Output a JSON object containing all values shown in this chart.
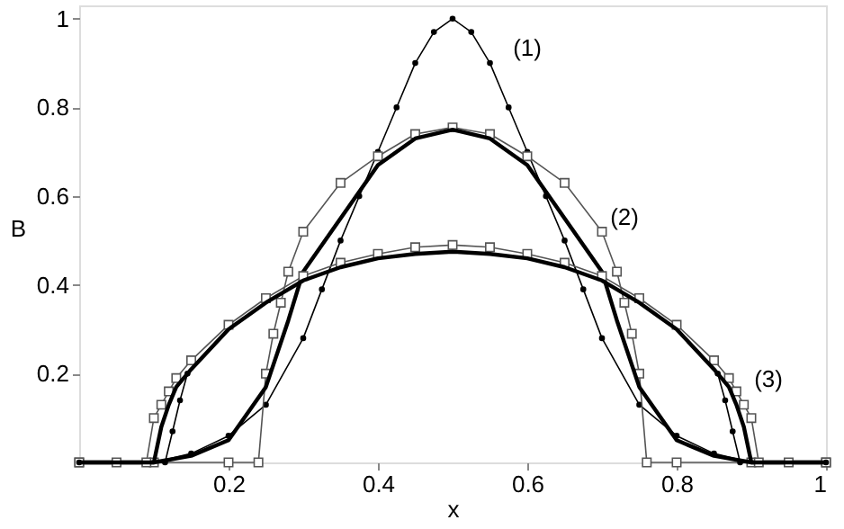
{
  "chart_data": {
    "type": "line",
    "xlabel": "x",
    "ylabel": "B",
    "xlim": [
      0,
      1
    ],
    "ylim": [
      0,
      1.03
    ],
    "xticks": [
      0.2,
      0.4,
      0.6,
      0.8,
      1
    ],
    "yticks": [
      0.2,
      0.4,
      0.6,
      0.8,
      1
    ],
    "grid": false,
    "series": [
      {
        "color": "#000000",
        "marker": "circle",
        "x": [
          0,
          0.1,
          0.15,
          0.2,
          0.25,
          0.3,
          0.325,
          0.35,
          0.375,
          0.4,
          0.425,
          0.45,
          0.475,
          0.5,
          0.525,
          0.55,
          0.575,
          0.6,
          0.625,
          0.65,
          0.675,
          0.7,
          0.75,
          0.8,
          0.85,
          0.9,
          1
        ],
        "values": [
          0,
          0,
          0.02,
          0.06,
          0.13,
          0.28,
          0.39,
          0.5,
          0.6,
          0.7,
          0.8,
          0.9,
          0.97,
          1.0,
          0.97,
          0.9,
          0.8,
          0.7,
          0.6,
          0.5,
          0.39,
          0.28,
          0.13,
          0.06,
          0.02,
          0,
          0
        ]
      },
      {
        "color": "#555555",
        "marker": "square",
        "x": [
          0,
          0.1,
          0.2,
          0.24,
          0.25,
          0.26,
          0.27,
          0.28,
          0.3,
          0.35,
          0.4,
          0.45,
          0.5,
          0.55,
          0.6,
          0.65,
          0.7,
          0.72,
          0.73,
          0.74,
          0.75,
          0.76,
          0.8,
          0.9,
          1
        ],
        "values": [
          0,
          0,
          0,
          0,
          0.2,
          0.29,
          0.36,
          0.43,
          0.52,
          0.63,
          0.69,
          0.74,
          0.755,
          0.74,
          0.69,
          0.63,
          0.52,
          0.43,
          0.36,
          0.29,
          0.2,
          0,
          0,
          0,
          0
        ]
      },
      {
        "color": "#000000",
        "marker": "none",
        "x": [
          0,
          0.1,
          0.15,
          0.2,
          0.25,
          0.28,
          0.3,
          0.35,
          0.4,
          0.45,
          0.5,
          0.55,
          0.6,
          0.65,
          0.7,
          0.72,
          0.75,
          0.8,
          0.85,
          0.9,
          1
        ],
        "values": [
          0,
          0,
          0.015,
          0.05,
          0.17,
          0.32,
          0.43,
          0.55,
          0.67,
          0.73,
          0.75,
          0.73,
          0.67,
          0.55,
          0.43,
          0.32,
          0.17,
          0.05,
          0.015,
          0,
          0
        ]
      },
      {
        "color": "#555555",
        "marker": "square",
        "x": [
          0,
          0.05,
          0.09,
          0.1,
          0.11,
          0.12,
          0.13,
          0.15,
          0.2,
          0.25,
          0.3,
          0.35,
          0.4,
          0.45,
          0.5,
          0.55,
          0.6,
          0.65,
          0.7,
          0.75,
          0.8,
          0.85,
          0.87,
          0.88,
          0.89,
          0.9,
          0.91,
          0.95,
          1
        ],
        "values": [
          0,
          0,
          0,
          0.1,
          0.13,
          0.16,
          0.19,
          0.23,
          0.31,
          0.37,
          0.42,
          0.45,
          0.47,
          0.485,
          0.49,
          0.485,
          0.47,
          0.45,
          0.42,
          0.37,
          0.31,
          0.23,
          0.19,
          0.16,
          0.13,
          0.1,
          0,
          0,
          0
        ]
      },
      {
        "color": "#000000",
        "marker": "none",
        "x": [
          0,
          0.1,
          0.11,
          0.12,
          0.13,
          0.15,
          0.2,
          0.25,
          0.3,
          0.35,
          0.4,
          0.45,
          0.5,
          0.55,
          0.6,
          0.65,
          0.7,
          0.75,
          0.8,
          0.85,
          0.87,
          0.88,
          0.89,
          0.9,
          1
        ],
        "values": [
          0,
          0,
          0.08,
          0.13,
          0.17,
          0.21,
          0.3,
          0.36,
          0.41,
          0.44,
          0.46,
          0.47,
          0.475,
          0.47,
          0.46,
          0.44,
          0.41,
          0.36,
          0.3,
          0.21,
          0.17,
          0.13,
          0.08,
          0,
          0
        ]
      },
      {
        "color": "#000000",
        "marker": "circle",
        "x": [
          0,
          0.115,
          0.125,
          0.135,
          0.145,
          0.5,
          0.855,
          0.865,
          0.875,
          0.885,
          1
        ],
        "values": [
          0,
          0,
          0.07,
          0.14,
          0.2,
          null,
          0.2,
          0.14,
          0.07,
          0,
          0
        ]
      }
    ],
    "annotations": [
      "(1)",
      "(2)",
      "(3)"
    ]
  }
}
